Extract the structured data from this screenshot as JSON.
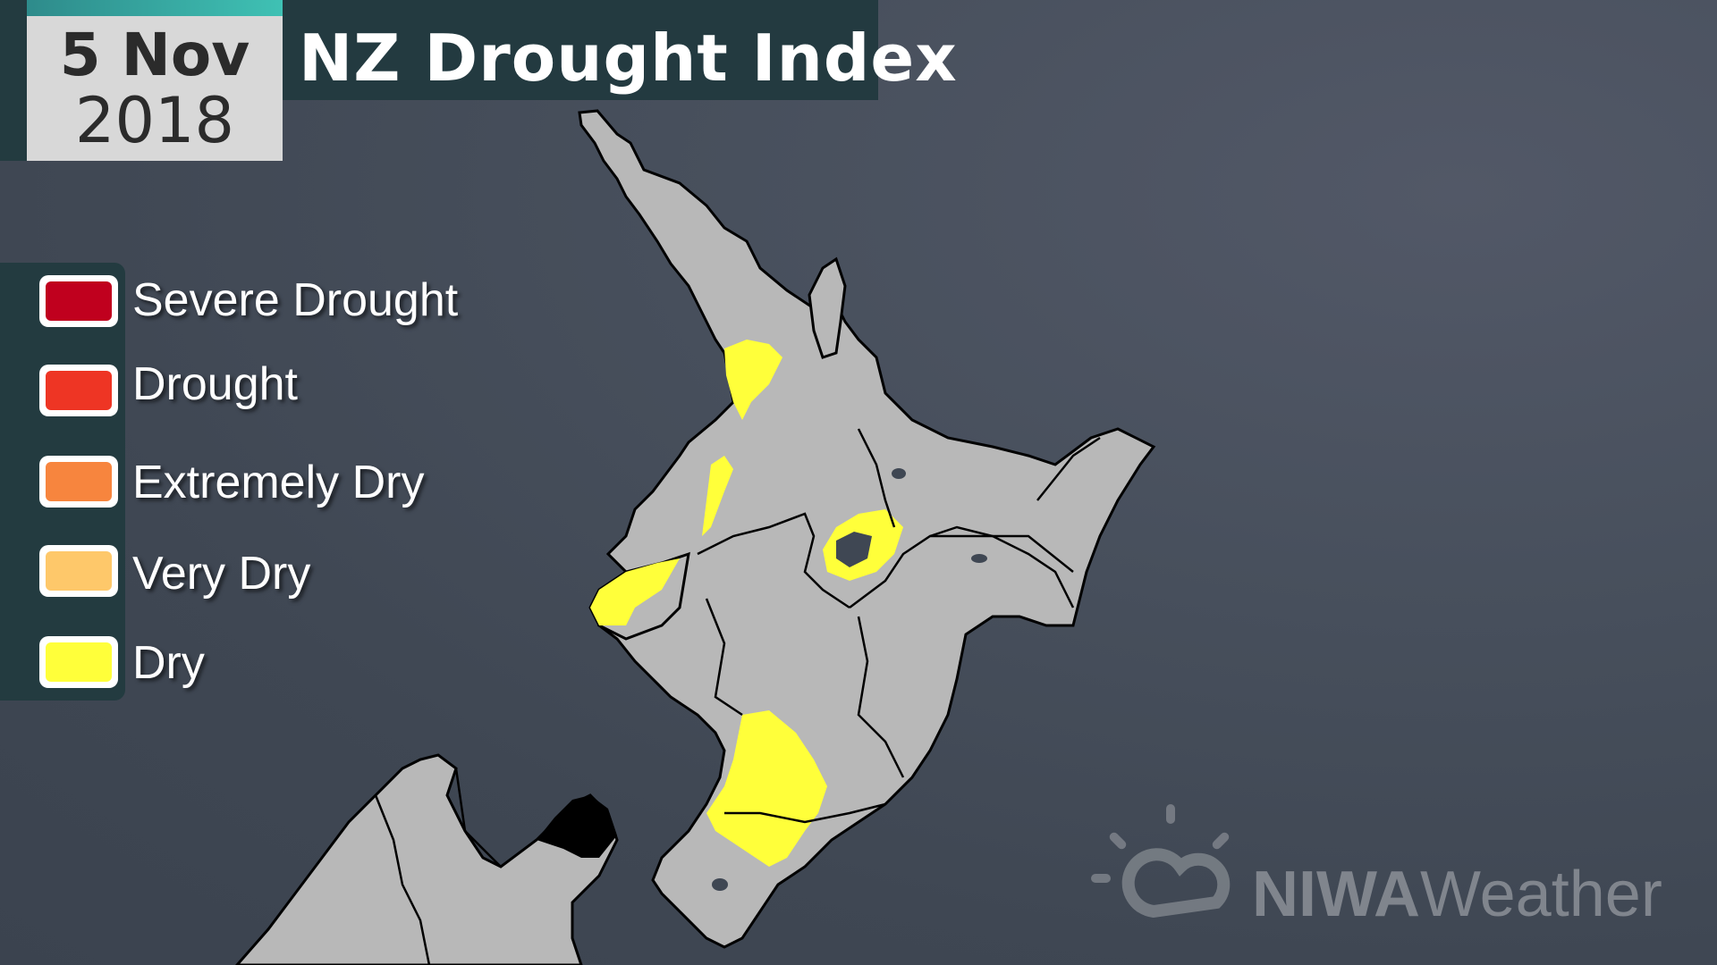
{
  "header": {
    "date_day": "5 Nov",
    "date_year": "2018",
    "title": "NZ Drought Index"
  },
  "legend": {
    "items": [
      {
        "label": "Severe Drought",
        "color": "#c0001e"
      },
      {
        "label": "Drought",
        "color": "#ee3524"
      },
      {
        "label": "Extremely Dry",
        "color": "#f7853e"
      },
      {
        "label": "Very Dry",
        "color": "#fec86a"
      },
      {
        "label": "Dry",
        "color": "#ffff3a"
      }
    ]
  },
  "map": {
    "land_color": "#b8b8b8",
    "dry_color": "#ffff3a",
    "border_color": "#000000",
    "icon": "new-zealand-north-island-map"
  },
  "branding": {
    "logo_bold": "NIWA",
    "logo_light": "Weather",
    "logo_icon": "sun-cloud-icon"
  }
}
